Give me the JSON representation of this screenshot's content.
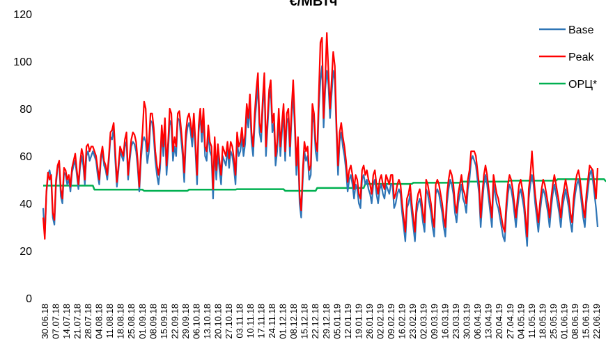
{
  "chart_data": {
    "type": "line",
    "title": "€/МВтч",
    "xlabel": "",
    "ylabel": "",
    "ylim": [
      0,
      120
    ],
    "yticks": [
      0,
      20,
      40,
      60,
      80,
      100,
      120
    ],
    "grid": false,
    "legend_position": "top-right",
    "x_tick_labels": [
      "30.06.18",
      "07.07.18",
      "14.07.18",
      "21.07.18",
      "28.07.18",
      "04.08.18",
      "11.08.18",
      "18.08.18",
      "25.08.18",
      "01.09.18",
      "08.09.18",
      "15.09.18",
      "22.09.18",
      "29.09.18",
      "06.10.18",
      "13.10.18",
      "20.10.18",
      "27.10.18",
      "03.11.18",
      "10.11.18",
      "17.11.18",
      "24.11.18",
      "01.12.18",
      "08.12.18",
      "15.12.18",
      "22.12.18",
      "29.12.18",
      "05.01.19",
      "12.01.19",
      "19.01.19",
      "26.01.19",
      "02.02.19",
      "09.02.19",
      "16.02.19",
      "23.02.19",
      "02.03.19",
      "09.03.19",
      "16.03.19",
      "23.03.19",
      "30.03.19",
      "06.04.19",
      "13.04.19",
      "20.04.19",
      "27.04.19",
      "04.05.19",
      "11.05.19",
      "18.05.19",
      "25.05.19",
      "01.06.19",
      "08.06.19",
      "15.06.19",
      "22.06.19"
    ],
    "series": [
      {
        "name": "Base",
        "color": "#2E75B6",
        "values": [
          38,
          26,
          44,
          52,
          54,
          50,
          34,
          31,
          48,
          55,
          57,
          43,
          40,
          53,
          52,
          48,
          50,
          45,
          53,
          56,
          58,
          52,
          46,
          55,
          60,
          56,
          48,
          60,
          62,
          58,
          60,
          62,
          60,
          58,
          52,
          48,
          58,
          62,
          56,
          54,
          50,
          58,
          68,
          67,
          72,
          58,
          47,
          54,
          62,
          60,
          58,
          64,
          66,
          50,
          58,
          64,
          66,
          65,
          62,
          55,
          45,
          58,
          66,
          68,
          66,
          57,
          62,
          75,
          74,
          68,
          58,
          52,
          48,
          55,
          70,
          60,
          72,
          52,
          62,
          75,
          73,
          58,
          64,
          60,
          76,
          75,
          68,
          60,
          49,
          66,
          72,
          74,
          70,
          64,
          74,
          62,
          48,
          70,
          78,
          66,
          76,
          60,
          58,
          70,
          62,
          60,
          42,
          64,
          50,
          61,
          54,
          48,
          60,
          58,
          56,
          63,
          55,
          62,
          60,
          55,
          48,
          66,
          60,
          62,
          68,
          60,
          65,
          78,
          72,
          82,
          66,
          60,
          74,
          82,
          90,
          70,
          66,
          80,
          92,
          60,
          72,
          84,
          88,
          70,
          74,
          56,
          62,
          76,
          60,
          70,
          78,
          58,
          74,
          76,
          60,
          76,
          86,
          72,
          52,
          64,
          40,
          34,
          50,
          62,
          58,
          60,
          50,
          52,
          78,
          74,
          62,
          58,
          80,
          92,
          98,
          72,
          88,
          96,
          90,
          76,
          86,
          96,
          92,
          70,
          52,
          66,
          70,
          64,
          60,
          54,
          45,
          50,
          52,
          48,
          42,
          48,
          46,
          40,
          38,
          50,
          52,
          48,
          50,
          46,
          44,
          40,
          48,
          50,
          44,
          40,
          46,
          48,
          44,
          42,
          48,
          46,
          44,
          48,
          48,
          38,
          40,
          44,
          46,
          44,
          36,
          30,
          24,
          38,
          40,
          44,
          36,
          30,
          24,
          36,
          40,
          42,
          38,
          32,
          28,
          46,
          44,
          40,
          36,
          30,
          26,
          44,
          46,
          44,
          40,
          36,
          30,
          26,
          40,
          46,
          50,
          48,
          44,
          36,
          32,
          40,
          44,
          48,
          42,
          40,
          36,
          46,
          50,
          58,
          60,
          58,
          56,
          50,
          44,
          30,
          40,
          48,
          52,
          48,
          42,
          36,
          30,
          48,
          44,
          40,
          38,
          34,
          30,
          26,
          24,
          36,
          44,
          48,
          46,
          42,
          36,
          30,
          38,
          44,
          46,
          42,
          38,
          30,
          22,
          42,
          48,
          52,
          48,
          40,
          34,
          28,
          36,
          42,
          46,
          44,
          40,
          36,
          30,
          38,
          44,
          48,
          44,
          40,
          36,
          30,
          38,
          42,
          46,
          42,
          38,
          32,
          28,
          38,
          44,
          48,
          50,
          46,
          40,
          34,
          30,
          40,
          46,
          52,
          54,
          50,
          44,
          38,
          30
        ]
      },
      {
        "name": "Peak",
        "color": "#FF0000",
        "values": [
          34,
          25,
          45,
          53,
          50,
          52,
          36,
          33,
          50,
          56,
          58,
          46,
          42,
          55,
          54,
          50,
          52,
          47,
          55,
          58,
          61,
          54,
          48,
          57,
          63,
          60,
          50,
          64,
          65,
          62,
          64,
          64,
          62,
          60,
          55,
          50,
          60,
          64,
          58,
          56,
          52,
          60,
          70,
          71,
          74,
          62,
          49,
          56,
          64,
          62,
          60,
          67,
          70,
          52,
          60,
          67,
          70,
          69,
          66,
          58,
          47,
          62,
          70,
          83,
          80,
          62,
          66,
          78,
          78,
          72,
          62,
          56,
          52,
          58,
          73,
          64,
          76,
          56,
          66,
          80,
          78,
          62,
          68,
          64,
          78,
          79,
          72,
          64,
          53,
          70,
          76,
          78,
          74,
          68,
          78,
          66,
          52,
          73,
          80,
          70,
          80,
          64,
          62,
          73,
          66,
          64,
          46,
          68,
          54,
          65,
          58,
          52,
          64,
          62,
          60,
          66,
          59,
          66,
          64,
          59,
          52,
          70,
          64,
          66,
          72,
          64,
          69,
          82,
          76,
          86,
          70,
          64,
          78,
          88,
          95,
          74,
          70,
          84,
          95,
          64,
          76,
          88,
          92,
          74,
          78,
          60,
          66,
          80,
          64,
          74,
          82,
          62,
          78,
          80,
          64,
          80,
          92,
          76,
          56,
          68,
          44,
          37,
          54,
          66,
          62,
          64,
          54,
          56,
          82,
          78,
          66,
          62,
          86,
          108,
          110,
          76,
          92,
          112,
          96,
          80,
          92,
          104,
          98,
          74,
          56,
          70,
          74,
          68,
          64,
          58,
          49,
          54,
          56,
          52,
          46,
          52,
          50,
          44,
          42,
          54,
          56,
          52,
          54,
          50,
          48,
          44,
          52,
          54,
          48,
          44,
          50,
          52,
          48,
          46,
          52,
          50,
          48,
          52,
          52,
          42,
          44,
          48,
          50,
          48,
          40,
          34,
          28,
          42,
          44,
          48,
          40,
          34,
          28,
          40,
          44,
          46,
          42,
          36,
          32,
          50,
          48,
          44,
          40,
          34,
          30,
          48,
          50,
          48,
          44,
          40,
          34,
          30,
          44,
          50,
          54,
          52,
          48,
          40,
          36,
          44,
          48,
          52,
          46,
          44,
          40,
          50,
          54,
          62,
          62,
          62,
          60,
          54,
          48,
          34,
          44,
          52,
          56,
          52,
          46,
          40,
          34,
          52,
          48,
          44,
          42,
          38,
          34,
          30,
          28,
          40,
          48,
          52,
          50,
          46,
          40,
          34,
          42,
          48,
          50,
          46,
          42,
          34,
          26,
          46,
          52,
          62,
          52,
          44,
          38,
          32,
          40,
          46,
          50,
          48,
          44,
          40,
          34,
          42,
          48,
          52,
          48,
          44,
          40,
          34,
          42,
          46,
          50,
          46,
          42,
          36,
          32,
          42,
          48,
          52,
          54,
          50,
          44,
          38,
          34,
          44,
          50,
          56,
          55,
          54,
          48,
          42,
          55
        ]
      },
      {
        "name": "ОРЦ*",
        "color": "#00B050",
        "values": [
          47.5,
          47.5,
          47.5,
          47.5,
          47.5,
          47.5,
          47.5,
          47.5,
          47.5,
          47.5,
          47.5,
          47.5,
          47.5,
          47.5,
          47.5,
          47.5,
          47.5,
          47.5,
          47.5,
          47.5,
          47.5,
          47.5,
          47.5,
          47.5,
          47.5,
          47.5,
          47.5,
          47.5,
          47.5,
          47.5,
          47.5,
          47.5,
          45.8,
          45.8,
          45.8,
          45.8,
          45.8,
          45.8,
          45.8,
          45.8,
          45.8,
          45.8,
          45.8,
          45.8,
          45.8,
          45.8,
          45.8,
          45.8,
          45.8,
          45.8,
          45.8,
          45.8,
          45.8,
          45.8,
          45.8,
          45.8,
          45.8,
          45.8,
          45.8,
          45.8,
          45.8,
          45.8,
          45.8,
          45.3,
          45.3,
          45.3,
          45.3,
          45.3,
          45.3,
          45.3,
          45.3,
          45.3,
          45.3,
          45.3,
          45.3,
          45.3,
          45.3,
          45.3,
          45.3,
          45.3,
          45.3,
          45.3,
          45.3,
          45.3,
          45.3,
          45.3,
          45.3,
          45.3,
          45.3,
          45.3,
          45.3,
          45.8,
          45.8,
          45.8,
          45.8,
          45.8,
          45.8,
          45.8,
          45.8,
          45.8,
          45.8,
          45.8,
          45.8,
          45.8,
          45.8,
          45.8,
          45.8,
          45.8,
          45.8,
          45.8,
          45.8,
          45.8,
          45.8,
          45.8,
          45.8,
          45.8,
          45.8,
          45.8,
          45.8,
          45.8,
          45.8,
          46.0,
          46.0,
          46.0,
          46.0,
          46.0,
          46.0,
          46.0,
          46.0,
          46.0,
          46.0,
          46.0,
          46.0,
          46.0,
          46.0,
          46.0,
          46.0,
          46.0,
          46.0,
          46.0,
          46.0,
          46.0,
          46.0,
          46.0,
          46.0,
          46.0,
          46.0,
          46.0,
          46.0,
          46.0,
          46.0,
          45.3,
          45.3,
          45.3,
          45.3,
          45.3,
          45.3,
          45.3,
          45.3,
          45.3,
          45.3,
          45.3,
          45.3,
          45.3,
          45.3,
          45.3,
          45.3,
          45.3,
          45.3,
          45.3,
          45.3,
          46.5,
          46.5,
          46.5,
          46.5,
          46.5,
          46.5,
          46.5,
          46.5,
          46.5,
          46.5,
          46.5,
          46.5,
          46.5,
          46.5,
          46.5,
          46.5,
          46.5,
          46.5,
          46.5,
          46.5,
          46.5,
          46.5,
          46.5,
          46.5,
          46.5,
          46.5,
          46.5,
          46.5,
          46.5,
          46.5,
          48.2,
          48.2,
          48.2,
          48.2,
          48.2,
          48.2,
          48.2,
          48.2,
          48.2,
          48.2,
          48.2,
          48.2,
          48.2,
          48.2,
          48.2,
          48.2,
          48.2,
          48.2,
          48.2,
          48.2,
          48.2,
          48.2,
          48.2,
          48.2,
          48.2,
          48.2,
          48.2,
          48.2,
          48.2,
          48.2,
          48.7,
          48.7,
          48.7,
          48.7,
          48.7,
          48.7,
          48.7,
          48.7,
          48.7,
          48.7,
          48.7,
          48.7,
          48.7,
          48.7,
          48.7,
          48.7,
          48.7,
          48.7,
          48.7,
          48.7,
          48.7,
          48.7,
          48.7,
          48.7,
          48.7,
          48.7,
          48.7,
          48.7,
          48.7,
          48.7,
          49.2,
          49.2,
          49.2,
          49.2,
          49.2,
          49.2,
          49.2,
          49.2,
          49.2,
          49.2,
          49.2,
          49.2,
          49.2,
          49.2,
          49.2,
          49.2,
          49.2,
          49.2,
          49.2,
          49.2,
          49.2,
          49.2,
          49.2,
          49.2,
          49.2,
          49.2,
          49.2,
          49.2,
          49.2,
          49.2,
          49.6,
          49.6,
          49.6,
          49.6,
          49.6,
          49.6,
          49.6,
          49.6,
          49.6,
          49.6,
          49.6,
          49.6,
          49.6,
          49.6,
          49.6,
          49.6,
          49.6,
          49.6,
          49.6,
          49.6,
          49.6,
          49.6,
          49.6,
          49.6,
          49.6,
          49.6,
          49.6,
          49.6,
          49.6,
          49.6,
          50.2,
          50.2,
          50.2,
          50.2,
          50.2,
          50.2,
          50.2,
          50.2,
          50.2,
          50.2,
          50.2,
          50.2,
          50.2,
          50.2,
          50.2,
          50.2,
          50.2,
          50.2,
          50.2,
          50.2,
          50.2,
          50.2,
          50.2,
          50.2,
          50.2,
          50.2,
          50.2,
          50.2,
          50.2,
          50.2,
          49.4,
          49.4,
          49.4,
          49.4,
          49.4,
          49.4,
          49.4,
          49.4,
          49.4,
          49.4,
          49.4,
          49.4,
          49.4,
          49.4,
          49.4,
          49.4,
          49.4,
          49.4,
          49.4,
          49.4
        ]
      }
    ]
  }
}
